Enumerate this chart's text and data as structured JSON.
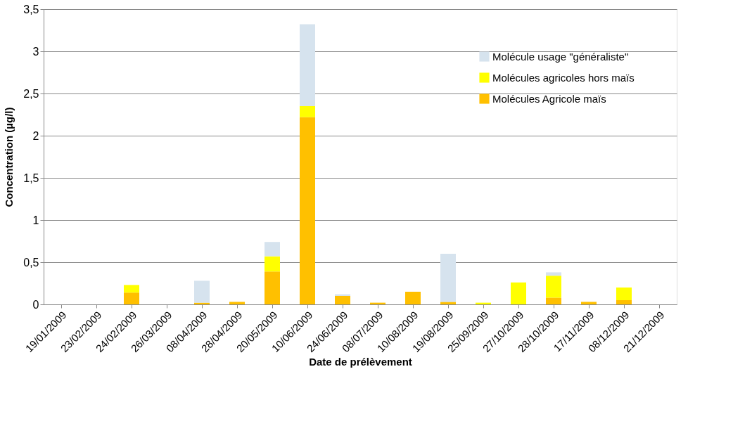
{
  "chart_data": {
    "type": "bar",
    "stacked": true,
    "xlabel": "Date de prélèvement",
    "ylabel": "Concentration (µg/l)",
    "categories": [
      "19/01/2009",
      "23/02/2009",
      "24/02/2009",
      "26/03/2009",
      "08/04/2009",
      "28/04/2009",
      "20/05/2009",
      "10/06/2009",
      "24/06/2009",
      "08/07/2009",
      "10/08/2009",
      "19/08/2009",
      "25/09/2009",
      "27/10/2009",
      "28/10/2009",
      "17/11/2009",
      "08/12/2009",
      "21/12/2009"
    ],
    "series": [
      {
        "name": "Molécules Agricole maïs",
        "color": "#ffc000",
        "values": [
          0,
          0,
          0.14,
          0,
          0.02,
          0.03,
          0.39,
          2.22,
          0.1,
          0.02,
          0.15,
          0.03,
          0,
          0,
          0.08,
          0.03,
          0.05,
          0
        ]
      },
      {
        "name": "Molécules agricoles hors maïs",
        "color": "#ffff00",
        "values": [
          0,
          0,
          0.09,
          0,
          0,
          0,
          0.18,
          0.13,
          0,
          0,
          0,
          0,
          0.02,
          0.26,
          0.26,
          0,
          0.15,
          0
        ]
      },
      {
        "name": "Molécule usage \"généraliste\"",
        "color": "#d6e3ee",
        "values": [
          0,
          0,
          0,
          0,
          0.26,
          0,
          0.17,
          0.97,
          0.02,
          0,
          0,
          0.57,
          0,
          0,
          0.04,
          0,
          0,
          0
        ]
      }
    ],
    "ylim": [
      0,
      3.5
    ],
    "yticks": [
      0,
      {
        "value": 0.5,
        "label": "0,5"
      },
      1,
      {
        "value": 1.5,
        "label": "1,5"
      },
      2,
      {
        "value": 2.5,
        "label": "2,5"
      },
      3,
      {
        "value": 3.5,
        "label": "3,5"
      }
    ],
    "grid": "y",
    "legend": "top right"
  }
}
